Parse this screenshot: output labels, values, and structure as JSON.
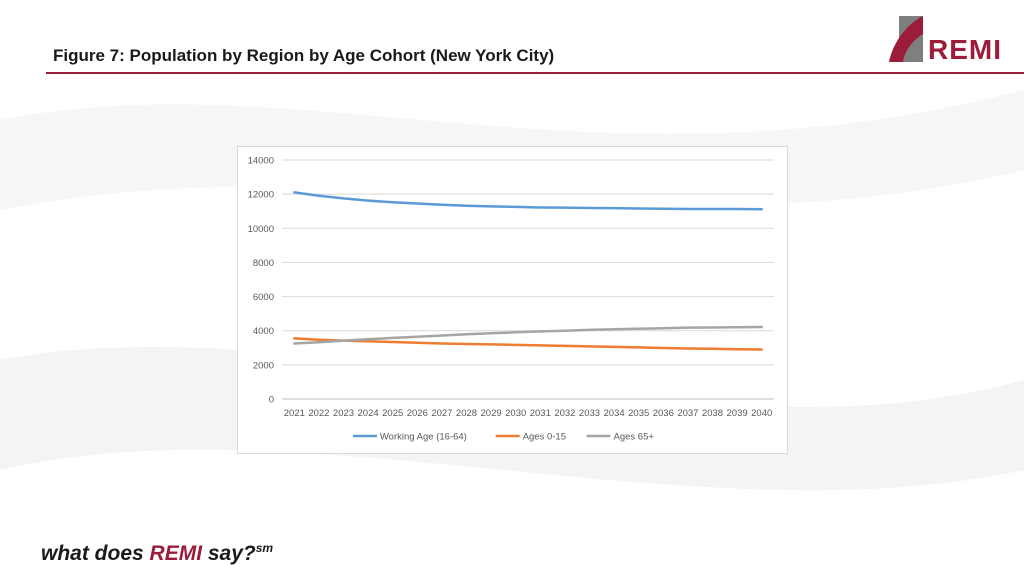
{
  "slide": {
    "title": "Figure 7: Population by Region by Age Cohort (New York City)",
    "logo_text": "REMI",
    "tagline_pre": "what does ",
    "tagline_brand": "REMI",
    "tagline_post": " say?",
    "tagline_sup": "sm"
  },
  "colors": {
    "brand": "#9b1d3a",
    "working_age": "#5b9bd5",
    "ages_0_15": "#ed7d31",
    "ages_65": "#a5a5a5"
  },
  "chart_data": {
    "type": "line",
    "title": "",
    "xlabel": "",
    "ylabel": "",
    "ylim": [
      0,
      14000
    ],
    "yticks": [
      0,
      2000,
      4000,
      6000,
      8000,
      10000,
      12000,
      14000
    ],
    "grid": true,
    "legend_position": "bottom",
    "x": [
      "2021",
      "2022",
      "2023",
      "2024",
      "2025",
      "2026",
      "2027",
      "2028",
      "2029",
      "2030",
      "2031",
      "2032",
      "2033",
      "2034",
      "2035",
      "2036",
      "2037",
      "2038",
      "2039",
      "2040"
    ],
    "series": [
      {
        "name": "Working Age (16-64)",
        "color": "#5b9bd5",
        "values": [
          12100,
          11900,
          11750,
          11620,
          11520,
          11450,
          11380,
          11320,
          11280,
          11250,
          11220,
          11210,
          11190,
          11180,
          11160,
          11140,
          11130,
          11130,
          11130,
          11120
        ]
      },
      {
        "name": "Ages 0-15",
        "color": "#ed7d31",
        "values": [
          3550,
          3470,
          3420,
          3380,
          3340,
          3300,
          3250,
          3220,
          3200,
          3170,
          3140,
          3110,
          3080,
          3050,
          3020,
          2990,
          2960,
          2940,
          2920,
          2900
        ]
      },
      {
        "name": "Ages 65+",
        "color": "#a5a5a5",
        "values": [
          3250,
          3330,
          3420,
          3500,
          3580,
          3650,
          3720,
          3790,
          3850,
          3910,
          3960,
          4000,
          4050,
          4090,
          4120,
          4150,
          4180,
          4190,
          4200,
          4220
        ]
      }
    ]
  }
}
